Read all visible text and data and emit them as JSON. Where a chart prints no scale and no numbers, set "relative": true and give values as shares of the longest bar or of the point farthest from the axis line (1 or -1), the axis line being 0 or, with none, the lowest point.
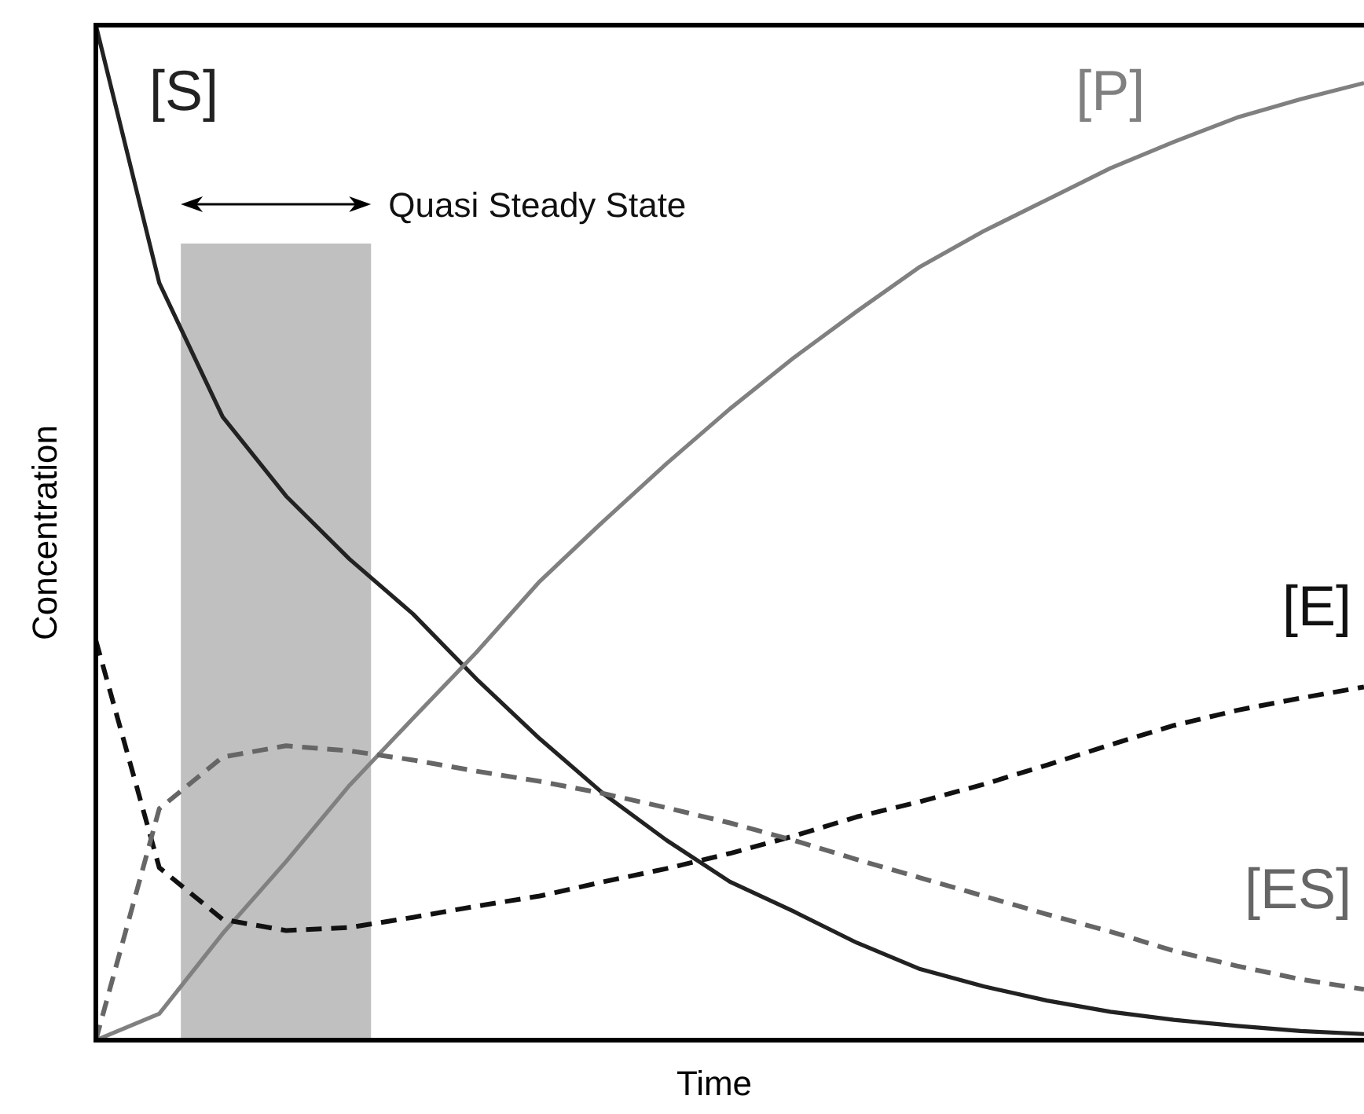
{
  "chart_data": {
    "type": "line",
    "relative": true,
    "xlabel": "Time",
    "ylabel": "Concentration",
    "categories": [
      null,
      null,
      null,
      null,
      null,
      null,
      null,
      null,
      null,
      null,
      null,
      null,
      null,
      null,
      null,
      null,
      null,
      null,
      null,
      null,
      null
    ],
    "series": [
      {
        "name": "[S]",
        "color": "#222222",
        "line_style": "solid",
        "values": [
          1.0,
          0.746,
          0.614,
          0.536,
          0.474,
          0.42,
          0.356,
          0.297,
          0.243,
          0.197,
          0.156,
          0.127,
          0.096,
          0.07,
          0.053,
          0.039,
          0.028,
          0.02,
          0.014,
          0.009,
          0.006
        ]
      },
      {
        "name": "[P]",
        "color": "#808080",
        "line_style": "solid",
        "values": [
          0,
          0.026,
          0.105,
          0.176,
          0.251,
          0.317,
          0.382,
          0.452,
          0.511,
          0.568,
          0.622,
          0.672,
          0.718,
          0.762,
          0.797,
          0.828,
          0.859,
          0.885,
          0.909,
          0.927,
          0.943
        ]
      },
      {
        "name": "[E]",
        "color": "#111111",
        "line_style": "dashed",
        "values": [
          0.394,
          0.17,
          0.119,
          0.108,
          0.111,
          0.121,
          0.132,
          0.142,
          0.156,
          0.169,
          0.184,
          0.201,
          0.22,
          0.235,
          0.252,
          0.271,
          0.291,
          0.31,
          0.325,
          0.337,
          0.348
        ]
      },
      {
        "name": "[ES]",
        "color": "#666666",
        "line_style": "dashed",
        "values": [
          0,
          0.228,
          0.279,
          0.29,
          0.285,
          0.276,
          0.265,
          0.255,
          0.243,
          0.229,
          0.214,
          0.197,
          0.178,
          0.16,
          0.142,
          0.124,
          0.107,
          0.088,
          0.073,
          0.06,
          0.05
        ]
      }
    ],
    "annotations": [
      "Quasi Steady State"
    ]
  }
}
